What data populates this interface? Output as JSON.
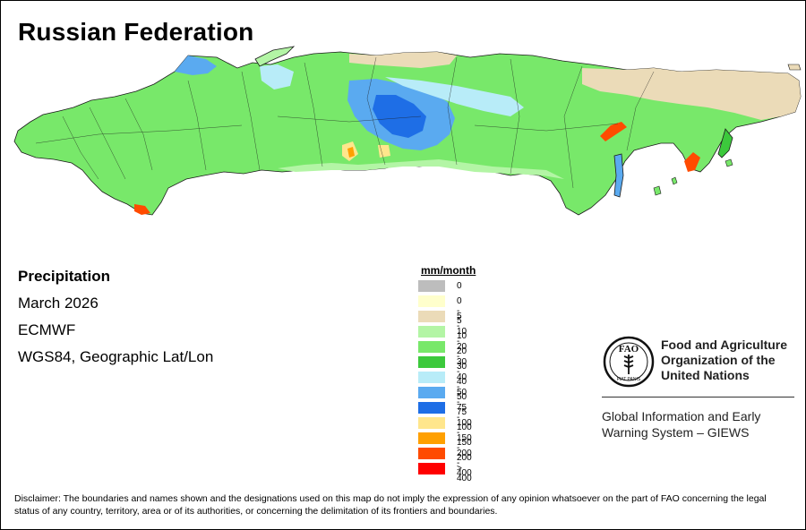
{
  "title": "Russian Federation",
  "info": {
    "variable": "Precipitation",
    "period": "March 2026",
    "model": "ECMWF",
    "projection": "WGS84, Geographic Lat/Lon"
  },
  "legend": {
    "title": "mm/month",
    "classes": [
      {
        "label": "0",
        "color": "#bdbdbd"
      },
      {
        "label": "0 - 5",
        "color": "#ffffcc"
      },
      {
        "label": "5 - 10",
        "color": "#ebdbb8"
      },
      {
        "label": "10 - 20",
        "color": "#b3f5a5"
      },
      {
        "label": "20 - 30",
        "color": "#78e86a"
      },
      {
        "label": "30 - 40",
        "color": "#3cc93c"
      },
      {
        "label": "40 - 50",
        "color": "#b8ecf8"
      },
      {
        "label": "50 - 75",
        "color": "#5aaaf0"
      },
      {
        "label": "75 - 100",
        "color": "#1e6ee6"
      },
      {
        "label": "100 - 150",
        "color": "#ffe68c"
      },
      {
        "label": "150 - 200",
        "color": "#ffa000"
      },
      {
        "label": "200 - 400",
        "color": "#ff4b00"
      },
      {
        "label": "> 400",
        "color": "#ff0000"
      }
    ]
  },
  "fao": {
    "name_lines": [
      "Food and Agriculture",
      "Organization of the",
      "United Nations"
    ],
    "logo_letters": "FAO",
    "logo_motto": "FIAT PANIS",
    "program_lines": [
      "Global Information and Early",
      "Warning System – GIEWS"
    ]
  },
  "disclaimer": "Disclaimer: The boundaries and names shown and the designations used on this map do not imply the expression of any opinion whatsoever on the part of FAO concerning the legal status of any country, territory, area or of its authorities, or concerning the delimitation of its frontiers and boundaries."
}
